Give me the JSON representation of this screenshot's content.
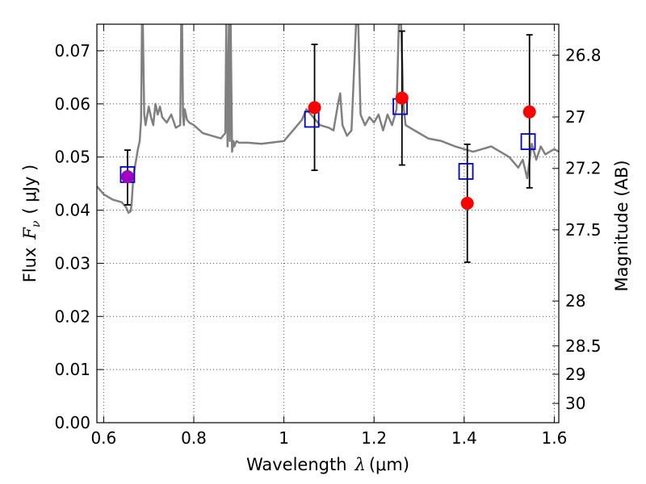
{
  "chart_data": {
    "type": "scatter",
    "xlabel_text": "Wavelength",
    "xlabel_sym": "λ",
    "xlabel_unit": "(μm)",
    "ylabel_text": "Flux",
    "ylabel_sym": "F",
    "ylabel_sub": "ν",
    "ylabel_unit": "( μJy )",
    "y2label": "Magnitude (AB)",
    "xlim": [
      0.585,
      1.61
    ],
    "ylim": [
      0.0,
      0.075
    ],
    "grid": true,
    "x_ticks": [
      0.6,
      0.8,
      1.0,
      1.2,
      1.4,
      1.6
    ],
    "x_tick_labels": [
      "0.6",
      "0.8",
      "1",
      "1.2",
      "1.4",
      "1.6"
    ],
    "y_ticks": [
      0.0,
      0.01,
      0.02,
      0.03,
      0.04,
      0.05,
      0.06,
      0.07
    ],
    "y_tick_labels": [
      "0.00",
      "0.01",
      "0.02",
      "0.03",
      "0.04",
      "0.05",
      "0.06",
      "0.07"
    ],
    "y2_ticks": [
      26.8,
      27,
      27.2,
      27.5,
      28,
      28.5,
      29,
      30
    ],
    "y2_tick_labels": [
      "26.8",
      "27",
      "27.2",
      "27.5",
      "28",
      "28.5",
      "29",
      "30"
    ],
    "series": [
      {
        "name": "model_spectrum",
        "kind": "line",
        "color": "#808080",
        "x": [
          0.585,
          0.6,
          0.62,
          0.64,
          0.65,
          0.655,
          0.66,
          0.662,
          0.665,
          0.668,
          0.672,
          0.676,
          0.68,
          0.683,
          0.685,
          0.687,
          0.69,
          0.693,
          0.696,
          0.7,
          0.705,
          0.71,
          0.715,
          0.72,
          0.725,
          0.73,
          0.74,
          0.75,
          0.76,
          0.77,
          0.772,
          0.774,
          0.776,
          0.778,
          0.78,
          0.785,
          0.79,
          0.8,
          0.82,
          0.84,
          0.86,
          0.87,
          0.872,
          0.875,
          0.878,
          0.88,
          0.882,
          0.885,
          0.888,
          0.89,
          0.892,
          0.895,
          0.9,
          0.92,
          0.95,
          1.0,
          1.02,
          1.04,
          1.05,
          1.06,
          1.08,
          1.1,
          1.11,
          1.12,
          1.125,
          1.13,
          1.14,
          1.15,
          1.16,
          1.165,
          1.17,
          1.18,
          1.19,
          1.2,
          1.21,
          1.22,
          1.23,
          1.24,
          1.25,
          1.255,
          1.26,
          1.265,
          1.27,
          1.28,
          1.3,
          1.32,
          1.35,
          1.38,
          1.4,
          1.42,
          1.44,
          1.46,
          1.48,
          1.5,
          1.52,
          1.53,
          1.54,
          1.55,
          1.56,
          1.57,
          1.58,
          1.59,
          1.6,
          1.61
        ],
        "y": [
          0.0445,
          0.043,
          0.042,
          0.0415,
          0.0405,
          0.0395,
          0.0398,
          0.0412,
          0.045,
          0.0475,
          0.0495,
          0.0515,
          0.053,
          0.057,
          0.075,
          0.075,
          0.058,
          0.056,
          0.0575,
          0.0595,
          0.0575,
          0.056,
          0.06,
          0.058,
          0.0595,
          0.0575,
          0.0565,
          0.058,
          0.0555,
          0.056,
          0.075,
          0.075,
          0.058,
          0.056,
          0.059,
          0.057,
          0.0565,
          0.056,
          0.0545,
          0.054,
          0.0535,
          0.0545,
          0.075,
          0.052,
          0.075,
          0.053,
          0.075,
          0.051,
          0.053,
          0.052,
          0.0525,
          0.053,
          0.0527,
          0.0527,
          0.0525,
          0.053,
          0.055,
          0.057,
          0.059,
          0.058,
          0.056,
          0.0555,
          0.055,
          0.06,
          0.062,
          0.056,
          0.054,
          0.055,
          0.075,
          0.075,
          0.058,
          0.056,
          0.0575,
          0.0565,
          0.058,
          0.055,
          0.058,
          0.056,
          0.059,
          0.075,
          0.075,
          0.06,
          0.056,
          0.0555,
          0.0545,
          0.0535,
          0.053,
          0.052,
          0.0515,
          0.051,
          0.0515,
          0.052,
          0.051,
          0.05,
          0.048,
          0.0495,
          0.046,
          0.0525,
          0.0495,
          0.052,
          0.0505,
          0.051,
          0.0515,
          0.051
        ]
      },
      {
        "name": "observed",
        "kind": "errorbar",
        "marker": "circle",
        "color": "#ff0000",
        "points": [
          {
            "x": 0.653,
            "y": 0.0463,
            "yerr_low": 0.041,
            "yerr_high": 0.0513
          },
          {
            "x": 1.068,
            "y": 0.0593,
            "yerr_low": 0.0475,
            "yerr_high": 0.0712
          },
          {
            "x": 1.262,
            "y": 0.0611,
            "yerr_low": 0.0485,
            "yerr_high": 0.0737
          },
          {
            "x": 1.407,
            "y": 0.0413,
            "yerr_low": 0.0302,
            "yerr_high": 0.0524
          },
          {
            "x": 1.545,
            "y": 0.0585,
            "yerr_low": 0.0442,
            "yerr_high": 0.073
          }
        ]
      },
      {
        "name": "model_photometry",
        "kind": "scatter",
        "marker": "open-square",
        "color": "#0000cc",
        "points": [
          {
            "x": 0.653,
            "y": 0.0467
          },
          {
            "x": 1.062,
            "y": 0.0571
          },
          {
            "x": 1.258,
            "y": 0.0595
          },
          {
            "x": 1.404,
            "y": 0.0473
          },
          {
            "x": 1.542,
            "y": 0.0529
          }
        ]
      }
    ],
    "overlap_marker_color": "#a000c0"
  }
}
